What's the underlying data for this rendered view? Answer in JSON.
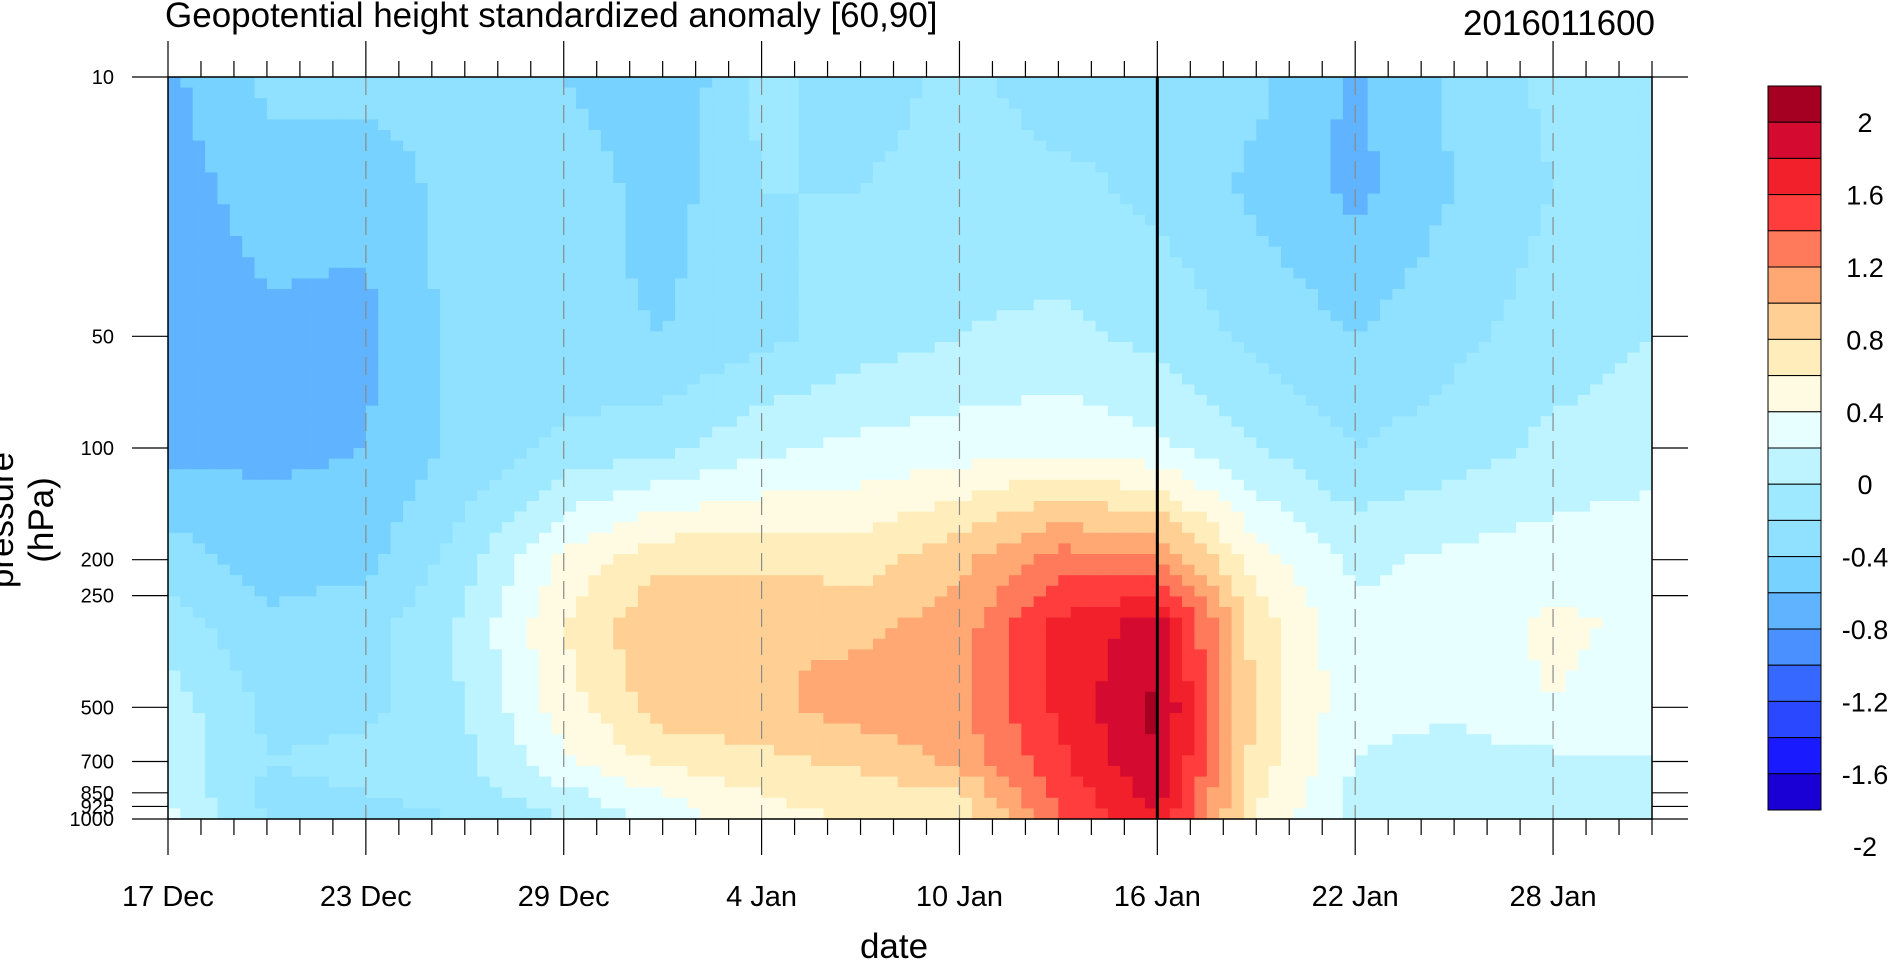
{
  "chart_data": {
    "type": "heatmap",
    "title": "Geopotential height standardized anomaly [60,90]",
    "subtitle": "2016011600",
    "xlabel": "date",
    "ylabel": "pressure (hPa)",
    "x_tick_labels": [
      "17 Dec",
      "23 Dec",
      "29 Dec",
      "4 Jan",
      "10 Jan",
      "16 Jan",
      "22 Jan",
      "28 Jan"
    ],
    "x_tick_days": [
      0,
      6,
      12,
      18,
      24,
      30,
      36,
      42
    ],
    "x_range_days": [
      0,
      45
    ],
    "y_tick_labels": [
      "10",
      "50",
      "100",
      "200",
      "250",
      "500",
      "700",
      "850",
      "925",
      "1000"
    ],
    "y_ticks": [
      10,
      50,
      100,
      200,
      250,
      500,
      700,
      850,
      925,
      1000
    ],
    "y_range": [
      10,
      1000
    ],
    "y_scale": "log",
    "y_inverted": true,
    "vertical_marker_day": 30,
    "grid": "dashed vertical at date ticks",
    "colorbar": {
      "labels": [
        "2",
        "1.6",
        "1.2",
        "0.8",
        "0.4",
        "0",
        "-0.4",
        "-0.8",
        "-1.2",
        "-1.6",
        "-2"
      ],
      "colors": [
        "#a50021",
        "#d50a30",
        "#f2202a",
        "#ff3d3d",
        "#ff7a5a",
        "#ffa873",
        "#ffcf94",
        "#ffeebb",
        "#fffbe3",
        "#e7ffff",
        "#bdf4ff",
        "#9ee9ff",
        "#8fe1ff",
        "#78d2ff",
        "#5fb3ff",
        "#4a90ff",
        "#3668ff",
        "#2a48ff",
        "#1a1aff",
        "#1a00d5"
      ]
    },
    "field": {
      "days": [
        0,
        3,
        6,
        9,
        12,
        15,
        18,
        21,
        24,
        27,
        30,
        33,
        36,
        39,
        42,
        45
      ],
      "levels": [
        10,
        20,
        50,
        100,
        200,
        300,
        500,
        700,
        850,
        1000
      ],
      "values": [
        [
          -0.85,
          -0.55,
          -0.5,
          -0.5,
          -0.6,
          -0.8,
          -0.35,
          -0.5,
          -0.35,
          -0.5,
          -0.4,
          -0.55,
          -0.85,
          -0.55,
          -0.35,
          -0.3
        ],
        [
          -0.9,
          -0.7,
          -0.75,
          -0.5,
          -0.45,
          -0.7,
          -0.4,
          -0.4,
          -0.3,
          -0.35,
          -0.45,
          -0.65,
          -0.85,
          -0.6,
          -0.4,
          -0.3
        ],
        [
          -0.95,
          -0.85,
          -0.85,
          -0.5,
          -0.55,
          -0.6,
          -0.45,
          -0.3,
          -0.2,
          -0.15,
          -0.25,
          -0.45,
          -0.6,
          -0.45,
          -0.3,
          -0.2
        ],
        [
          -0.85,
          -0.85,
          -0.8,
          -0.55,
          -0.35,
          -0.25,
          -0.05,
          0.05,
          0.1,
          0.15,
          0.05,
          -0.2,
          -0.4,
          -0.3,
          -0.15,
          -0.1
        ],
        [
          -0.5,
          -0.7,
          -0.65,
          -0.3,
          0.25,
          0.55,
          0.55,
          0.5,
          0.75,
          1.1,
          1.0,
          0.3,
          -0.05,
          0.05,
          0.1,
          0.15
        ],
        [
          -0.3,
          -0.55,
          -0.5,
          -0.15,
          0.4,
          0.8,
          0.8,
          0.75,
          0.9,
          1.45,
          1.7,
          0.5,
          0.05,
          0.1,
          0.25,
          0.15
        ],
        [
          -0.1,
          -0.45,
          -0.45,
          -0.2,
          0.3,
          0.7,
          0.75,
          0.9,
          0.95,
          1.45,
          1.85,
          0.55,
          0.05,
          0.05,
          0.2,
          0.05
        ],
        [
          -0.05,
          -0.4,
          -0.35,
          -0.25,
          0.15,
          0.45,
          0.55,
          0.65,
          0.85,
          1.35,
          1.8,
          0.5,
          0.0,
          -0.1,
          -0.05,
          0.0
        ],
        [
          -0.05,
          -0.45,
          -0.4,
          -0.3,
          -0.05,
          0.2,
          0.4,
          0.5,
          0.6,
          1.25,
          1.7,
          0.45,
          -0.05,
          -0.15,
          -0.1,
          -0.05
        ],
        [
          0.05,
          -0.4,
          -0.5,
          -0.4,
          -0.2,
          0.05,
          0.35,
          0.4,
          0.45,
          1.2,
          1.6,
          0.4,
          -0.1,
          -0.2,
          -0.1,
          -0.05
        ]
      ]
    }
  }
}
